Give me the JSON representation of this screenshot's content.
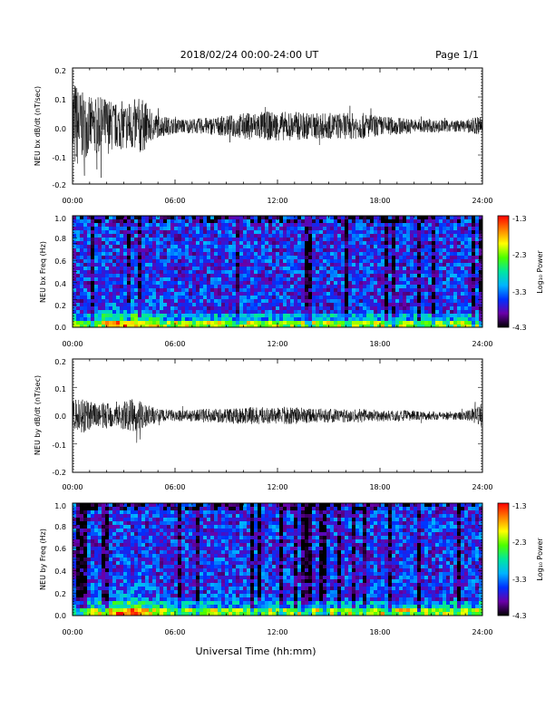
{
  "header": {
    "title": "2018/02/24  00:00-24:00 UT",
    "page": "Page 1/1"
  },
  "xlabel": "Universal Time (hh:mm)",
  "time_ticks": [
    "00:00",
    "06:00",
    "12:00",
    "18:00",
    "24:00"
  ],
  "colorbar": {
    "label": "Log₁₀ Power",
    "ticks": [
      "-1.3",
      "-2.3",
      "-3.3",
      "-4.3"
    ],
    "range": [
      -4.3,
      -1.3
    ],
    "colors": [
      "#000000",
      "#6a00a8",
      "#0030ff",
      "#00b4ff",
      "#00e6a0",
      "#4cff00",
      "#ffff00",
      "#ff8000",
      "#ff0000"
    ]
  },
  "chart_data": [
    {
      "type": "line",
      "ylabel": "NEU bx dB/dt (nT/sec)",
      "xlim": [
        0,
        24
      ],
      "ylim": [
        -0.2,
        0.2
      ],
      "y_ticks": [
        "0.2",
        "0.1",
        "0.0",
        "-0.1",
        "-0.2"
      ],
      "series": [
        {
          "x": [
            0.0,
            0.5,
            1.0,
            1.5,
            2.0,
            2.5,
            3.0,
            3.5,
            4.0,
            4.5,
            5.0,
            6.0,
            7.0,
            8.0,
            9.0,
            10.0,
            11.0,
            12.0,
            13.0,
            14.0,
            15.0,
            16.0,
            17.0,
            18.0,
            19.0,
            20.0,
            21.0,
            22.0,
            23.0,
            24.0
          ],
          "envelope": [
            0.18,
            0.12,
            0.1,
            0.1,
            0.1,
            0.08,
            0.08,
            0.09,
            0.1,
            0.06,
            0.04,
            0.025,
            0.025,
            0.03,
            0.035,
            0.045,
            0.05,
            0.05,
            0.05,
            0.045,
            0.045,
            0.045,
            0.045,
            0.035,
            0.03,
            0.025,
            0.022,
            0.02,
            0.02,
            0.04
          ]
        }
      ]
    },
    {
      "type": "heatmap",
      "ylabel": "NEU bx Freq (Hz)",
      "xlim": [
        0,
        24
      ],
      "ylim": [
        0.0,
        1.0
      ],
      "y_ticks": [
        "1.0",
        "0.8",
        "0.6",
        "0.4",
        "0.2",
        "0.0"
      ],
      "value_range": [
        -4.3,
        -1.3
      ]
    },
    {
      "type": "line",
      "ylabel": "NEU by dB/dt (nT/sec)",
      "xlim": [
        0,
        24
      ],
      "ylim": [
        -0.2,
        0.2
      ],
      "y_ticks": [
        "0.2",
        "0.1",
        "0.0",
        "-0.1",
        "-0.2"
      ],
      "series": [
        {
          "x": [
            0.0,
            0.5,
            1.0,
            1.5,
            2.0,
            2.5,
            3.0,
            3.5,
            4.0,
            4.5,
            5.0,
            6.0,
            7.0,
            8.0,
            9.0,
            10.0,
            11.0,
            12.0,
            13.0,
            14.0,
            15.0,
            16.0,
            17.0,
            18.0,
            19.0,
            20.0,
            21.0,
            22.0,
            23.0,
            24.0
          ],
          "envelope": [
            0.05,
            0.07,
            0.05,
            0.04,
            0.05,
            0.04,
            0.05,
            0.06,
            0.05,
            0.035,
            0.025,
            0.02,
            0.02,
            0.025,
            0.025,
            0.03,
            0.03,
            0.03,
            0.03,
            0.025,
            0.025,
            0.025,
            0.025,
            0.02,
            0.02,
            0.018,
            0.015,
            0.015,
            0.015,
            0.04
          ]
        }
      ]
    },
    {
      "type": "heatmap",
      "ylabel": "NEU by Freq (Hz)",
      "xlim": [
        0,
        24
      ],
      "ylim": [
        0.0,
        1.0
      ],
      "y_ticks": [
        "1.0",
        "0.8",
        "0.6",
        "0.4",
        "0.2",
        "0.0"
      ],
      "value_range": [
        -4.3,
        -1.3
      ]
    }
  ]
}
